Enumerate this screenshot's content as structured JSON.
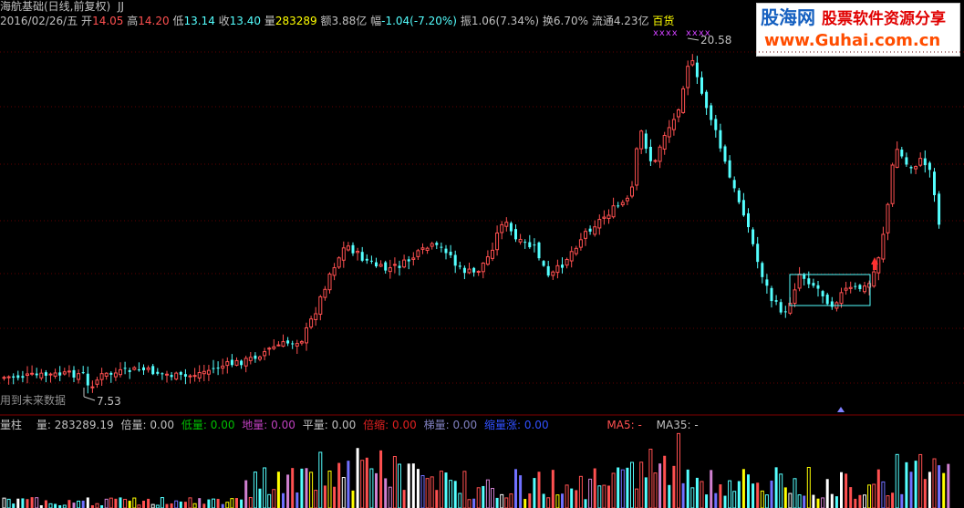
{
  "header": {
    "title": "海航基础(日线,前复权)",
    "indicator": "JJ",
    "date": "2016/02/26/五",
    "open_label": "开",
    "open": "14.05",
    "high_label": "高",
    "high": "14.20",
    "low_label": "低",
    "low": "13.14",
    "close_label": "收",
    "close": "13.40",
    "volume_label": "量",
    "volume": "283289",
    "amount_label": "额",
    "amount": "3.88亿",
    "change_label": "幅",
    "change": "-1.04(-7.20%)",
    "amplitude_label": "振",
    "amplitude": "1.06(7.34%)",
    "turnover_label": "换",
    "turnover": "6.70%",
    "float_label": "流通",
    "float": "4.23亿",
    "sector": "百货"
  },
  "main_chart": {
    "high_marker": "20.58",
    "low_marker": "7.53",
    "future_data_note": "用到未来数据",
    "top_marks": "xxxx"
  },
  "volume_panel": {
    "title": "量柱",
    "items": [
      {
        "label": "量:",
        "value": "283289.19",
        "color": "#c0c0c0"
      },
      {
        "label": "倍量:",
        "value": "0.00",
        "color": "#c0c0c0"
      },
      {
        "label": "低量:",
        "value": "0.00",
        "color": "#00c000"
      },
      {
        "label": "地量:",
        "value": "0.00",
        "color": "#c040c0"
      },
      {
        "label": "平量:",
        "value": "0.00",
        "color": "#c0c0c0"
      },
      {
        "label": "倍缩:",
        "value": "0.00",
        "color": "#e02020"
      },
      {
        "label": "梯量:",
        "value": "0.00",
        "color": "#8080c0"
      },
      {
        "label": "缩量涨:",
        "value": "0.00",
        "color": "#3050ff"
      }
    ],
    "ma5": "MA5: -",
    "ma35": "MA35: -"
  },
  "logo": {
    "name_blue": "股海网",
    "name_red": "股票软件资源分享",
    "url": "www.Guhai.com.cn"
  },
  "colors": {
    "up": "#ff5050",
    "down": "#54ffff",
    "gridline": "#600000",
    "header_value": "#ffff00"
  }
}
